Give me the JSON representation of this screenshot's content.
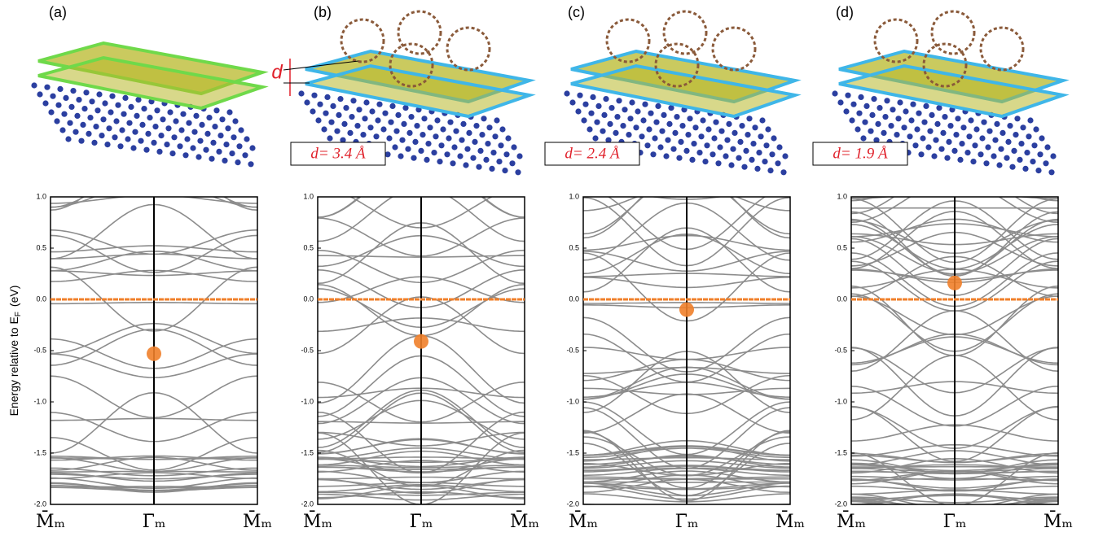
{
  "chart_data": [
    {
      "type": "line",
      "panel_label": "(a)",
      "y_label": "Energy relative to E",
      "y_label_sub": "F",
      "y_label_unit": "(eV)",
      "categories": [
        "M̄ₘ",
        "Γ̄ₘ",
        "M̄ₘ"
      ],
      "ylim": [
        -2,
        1
      ],
      "yticks": [
        {
          "value": -2,
          "label": "-2.0"
        },
        -1.5,
        {
          "value": -1,
          "label": "-1.0"
        },
        -0.5,
        {
          "value": 0,
          "label": "0.0"
        },
        0.5,
        {
          "value": 1,
          "label": "1.0"
        }
      ],
      "fermi_level": 0,
      "dirac_energy": -0.53,
      "color": "#f07f2a",
      "band_color": "#8c8c8c"
    },
    {
      "type": "line",
      "panel_label": "(b)",
      "annotation": "d= 3.4 Å",
      "d_label": "d",
      "categories": [
        "M̄ₘ",
        "Γ̄ₘ",
        "M̄ₘ"
      ],
      "ylim": [
        -2,
        1
      ],
      "yticks": [
        {
          "value": -2,
          "label": "-2.0"
        },
        -1.5,
        {
          "value": -1,
          "label": "-1.0"
        },
        -0.5,
        {
          "value": 0,
          "label": "0.0"
        },
        0.5,
        {
          "value": 1,
          "label": "1.0"
        }
      ],
      "fermi_level": 0,
      "dirac_energy": -0.41,
      "color": "#f07f2a",
      "band_color": "#8c8c8c"
    },
    {
      "type": "line",
      "panel_label": "(c)",
      "annotation": "d= 2.4 Å",
      "categories": [
        "M̄ₘ",
        "Γ̄ₘ",
        "M̄ₘ"
      ],
      "ylim": [
        -2,
        1
      ],
      "yticks": [
        {
          "value": -2,
          "label": "-2.0"
        },
        -1.5,
        {
          "value": -1,
          "label": "-1.0"
        },
        -0.5,
        {
          "value": 0,
          "label": "0.0"
        },
        0.5,
        {
          "value": 1,
          "label": "1.0"
        }
      ],
      "fermi_level": 0,
      "dirac_energy": -0.1,
      "color": "#f07f2a",
      "band_color": "#8c8c8c"
    },
    {
      "type": "line",
      "panel_label": "(d)",
      "annotation": "d= 1.9 Å",
      "categories": [
        "M̄ₘ",
        "Γ̄ₘ",
        "M̄ₘ"
      ],
      "ylim": [
        -2,
        1
      ],
      "yticks": [
        {
          "value": -2,
          "label": "-2.0"
        },
        -1.5,
        {
          "value": -1,
          "label": "-1.0"
        },
        -0.5,
        {
          "value": 0,
          "label": "0.0"
        },
        0.5,
        {
          "value": 1,
          "label": "1.0"
        }
      ],
      "fermi_level": 0,
      "dirac_energy": 0.16,
      "color": "#f07f2a",
      "band_color": "#8c8c8c"
    }
  ]
}
